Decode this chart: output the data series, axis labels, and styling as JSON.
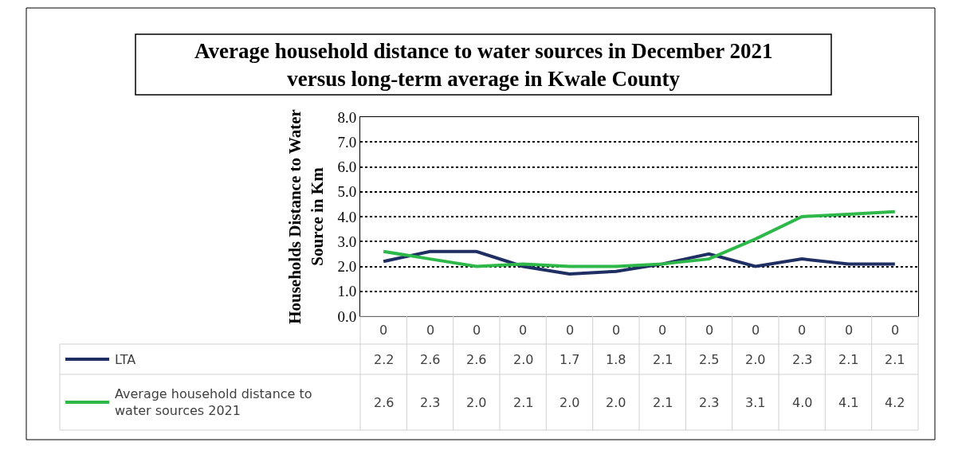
{
  "chart_data": {
    "type": "line",
    "title": "Average household distance to water sources in December 2021\nversus long-term average in Kwale County",
    "ylabel": "Households Distance to Water\nSource in Km",
    "categories": [
      "0",
      "0",
      "0",
      "0",
      "0",
      "0",
      "0",
      "0",
      "0",
      "0",
      "0",
      "0"
    ],
    "series": [
      {
        "name": "LTA",
        "color": "#1f2f63",
        "values": [
          2.2,
          2.6,
          2.6,
          2.0,
          1.7,
          1.8,
          2.1,
          2.5,
          2.0,
          2.3,
          2.1,
          2.1
        ],
        "value_labels": [
          "2.2",
          "2.6",
          "2.6",
          "2.0",
          "1.7",
          "1.8",
          "2.1",
          "2.5",
          "2.0",
          "2.3",
          "2.1",
          "2.1"
        ]
      },
      {
        "name": "Average household distance to\nwater sources 2021",
        "color": "#2eb84a",
        "values": [
          2.6,
          2.3,
          2.0,
          2.1,
          2.0,
          2.0,
          2.1,
          2.3,
          3.1,
          4.0,
          4.1,
          4.2
        ],
        "value_labels": [
          "2.6",
          "2.3",
          "2.0",
          "2.1",
          "2.0",
          "2.0",
          "2.1",
          "2.3",
          "3.1",
          "4.0",
          "4.1",
          "4.2"
        ]
      }
    ],
    "ylim": [
      0,
      8
    ],
    "yticks": [
      {
        "value": 0,
        "label": "0.0"
      },
      {
        "value": 1,
        "label": "1.0"
      },
      {
        "value": 2,
        "label": "2.0"
      },
      {
        "value": 3,
        "label": "3.0"
      },
      {
        "value": 4,
        "label": "4.0"
      },
      {
        "value": 5,
        "label": "5.0"
      },
      {
        "value": 6,
        "label": "6.0"
      },
      {
        "value": 7,
        "label": "7.0"
      },
      {
        "value": 8,
        "label": "8.0"
      }
    ],
    "grid": "y",
    "legend": "bottom left",
    "marker": "none",
    "line_style": "solid"
  }
}
